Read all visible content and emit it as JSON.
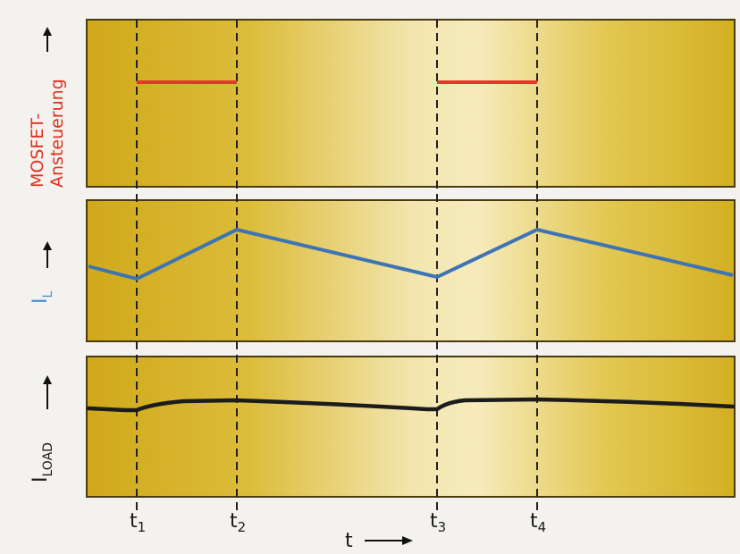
{
  "chart_data": {
    "type": "line",
    "panels": [
      {
        "id": "mosfet",
        "label": "MOSFET-\nAnsteuerung",
        "label_lines": [
          "MOSFET-",
          "Ansteuerung"
        ],
        "label_color": "#e0301e",
        "line_color": "#e8352a",
        "segments": [
          {
            "x": [
              "t1",
              "t2"
            ],
            "level": "on"
          },
          {
            "x": [
              "t3",
              "t4"
            ],
            "level": "on"
          }
        ]
      },
      {
        "id": "il",
        "label": "IL",
        "label_main": "I",
        "label_sub": "L",
        "label_color": "#4a90d0",
        "line_color": "#3f74b4",
        "shape": "triangle-wave",
        "points": [
          {
            "x": "start",
            "y": "mid"
          },
          {
            "x": "t1",
            "y": "min"
          },
          {
            "x": "t2",
            "y": "max"
          },
          {
            "x": "t3",
            "y": "min"
          },
          {
            "x": "t4",
            "y": "max"
          },
          {
            "x": "end",
            "y": "mid"
          }
        ]
      },
      {
        "id": "iload",
        "label": "ILOAD",
        "label_main": "I",
        "label_sub": "LOAD",
        "label_color": "#1a1a1a",
        "line_color": "#1c1c1c",
        "shape": "nearly-constant-with-small-ripple"
      }
    ],
    "x_ticks": [
      {
        "id": "t1",
        "main": "t",
        "sub": "1"
      },
      {
        "id": "t2",
        "main": "t",
        "sub": "2"
      },
      {
        "id": "t3",
        "main": "t",
        "sub": "3"
      },
      {
        "id": "t4",
        "main": "t",
        "sub": "4"
      }
    ],
    "xlabel": "t",
    "colors": {
      "panel_gold": "#d2ad1e",
      "panel_light": "#f0df9a",
      "border": "#4a3a10"
    }
  }
}
